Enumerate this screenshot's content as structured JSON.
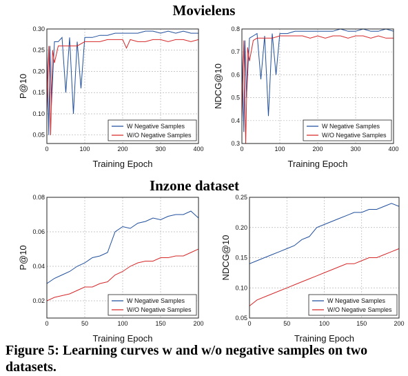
{
  "sections": [
    {
      "title": "Movielens"
    },
    {
      "title": "Inzone dataset"
    }
  ],
  "caption": "Figure 5: Learning curves w and w/o negative samples on two datasets.",
  "colors": {
    "with_neg": "#1f4e9c",
    "without_neg": "#d62728",
    "grid": "#b5b5b5"
  },
  "chart_data": [
    {
      "type": "line",
      "dataset": "Movielens",
      "xlabel": "Training Epoch",
      "ylabel": "P@10",
      "xlim": [
        0,
        400
      ],
      "ylim": [
        0.03,
        0.3
      ],
      "xticks": [
        "0",
        "100",
        "200",
        "300",
        "400"
      ],
      "yticks": [
        "0.05",
        "0.10",
        "0.15",
        "0.20",
        "0.25",
        "0.30"
      ],
      "grid": true,
      "legend_position": "bottom-right",
      "series": [
        {
          "name": "W Negative Samples",
          "x": [
            0,
            5,
            8,
            12,
            20,
            30,
            40,
            50,
            60,
            70,
            80,
            90,
            100,
            120,
            140,
            160,
            180,
            200,
            220,
            240,
            260,
            280,
            300,
            320,
            340,
            360,
            380,
            400
          ],
          "y": [
            0.25,
            0.05,
            0.26,
            0.12,
            0.27,
            0.27,
            0.28,
            0.15,
            0.28,
            0.1,
            0.27,
            0.16,
            0.28,
            0.28,
            0.285,
            0.285,
            0.29,
            0.29,
            0.29,
            0.29,
            0.295,
            0.295,
            0.29,
            0.295,
            0.29,
            0.295,
            0.29,
            0.29
          ]
        },
        {
          "name": "W/O Negative Samples",
          "x": [
            0,
            5,
            10,
            15,
            20,
            30,
            40,
            60,
            80,
            100,
            120,
            140,
            160,
            180,
            200,
            210,
            220,
            240,
            260,
            280,
            300,
            320,
            340,
            360,
            380,
            400
          ],
          "y": [
            0.1,
            0.26,
            0.05,
            0.25,
            0.22,
            0.26,
            0.26,
            0.26,
            0.26,
            0.27,
            0.27,
            0.27,
            0.275,
            0.275,
            0.275,
            0.255,
            0.275,
            0.27,
            0.27,
            0.275,
            0.275,
            0.27,
            0.275,
            0.275,
            0.27,
            0.275
          ]
        }
      ]
    },
    {
      "type": "line",
      "dataset": "Movielens",
      "xlabel": "Training Epoch",
      "ylabel": "NDCG@10",
      "xlim": [
        0,
        400
      ],
      "ylim": [
        0.3,
        0.8
      ],
      "xticks": [
        "0",
        "100",
        "200",
        "300",
        "400"
      ],
      "yticks": [
        "0.3",
        "0.4",
        "0.5",
        "0.6",
        "0.7",
        "0.8"
      ],
      "grid": true,
      "legend_position": "bottom-right",
      "series": [
        {
          "name": "W Negative Samples",
          "x": [
            0,
            5,
            8,
            12,
            20,
            30,
            40,
            50,
            60,
            70,
            80,
            90,
            100,
            120,
            140,
            160,
            180,
            200,
            220,
            240,
            260,
            280,
            300,
            320,
            340,
            360,
            380,
            400
          ],
          "y": [
            0.7,
            0.35,
            0.75,
            0.5,
            0.76,
            0.77,
            0.78,
            0.58,
            0.77,
            0.42,
            0.78,
            0.6,
            0.78,
            0.78,
            0.79,
            0.79,
            0.79,
            0.79,
            0.79,
            0.79,
            0.8,
            0.79,
            0.79,
            0.8,
            0.79,
            0.79,
            0.8,
            0.79
          ]
        },
        {
          "name": "W/O Negative Samples",
          "x": [
            0,
            5,
            10,
            15,
            20,
            30,
            40,
            60,
            80,
            100,
            120,
            140,
            160,
            180,
            200,
            220,
            240,
            260,
            280,
            300,
            320,
            340,
            360,
            380,
            400
          ],
          "y": [
            0.4,
            0.75,
            0.3,
            0.72,
            0.66,
            0.75,
            0.76,
            0.76,
            0.76,
            0.77,
            0.77,
            0.77,
            0.77,
            0.76,
            0.77,
            0.76,
            0.77,
            0.77,
            0.76,
            0.77,
            0.77,
            0.76,
            0.77,
            0.76,
            0.76
          ]
        }
      ]
    },
    {
      "type": "line",
      "dataset": "Inzone dataset",
      "xlabel": "Training Epoch",
      "ylabel": "P@10",
      "xlim": [
        0,
        200
      ],
      "ylim": [
        0.01,
        0.08
      ],
      "xticks": [
        "0",
        "50",
        "100",
        "150",
        "200"
      ],
      "yticks": [
        "0.02",
        "0.04",
        "0.06",
        "0.08"
      ],
      "grid": true,
      "legend_position": "bottom-right",
      "series": [
        {
          "name": "W Negative Samples",
          "x": [
            0,
            10,
            20,
            30,
            40,
            50,
            60,
            70,
            80,
            90,
            100,
            110,
            120,
            130,
            140,
            150,
            160,
            170,
            180,
            190,
            200
          ],
          "y": [
            0.03,
            0.033,
            0.035,
            0.037,
            0.04,
            0.042,
            0.045,
            0.046,
            0.048,
            0.06,
            0.063,
            0.062,
            0.065,
            0.066,
            0.068,
            0.067,
            0.069,
            0.07,
            0.07,
            0.072,
            0.068
          ]
        },
        {
          "name": "W/O Negative Samples",
          "x": [
            0,
            10,
            20,
            30,
            40,
            50,
            60,
            70,
            80,
            90,
            100,
            110,
            120,
            130,
            140,
            150,
            160,
            170,
            180,
            190,
            200
          ],
          "y": [
            0.02,
            0.022,
            0.023,
            0.024,
            0.026,
            0.028,
            0.028,
            0.03,
            0.031,
            0.035,
            0.037,
            0.04,
            0.042,
            0.043,
            0.043,
            0.045,
            0.045,
            0.046,
            0.046,
            0.048,
            0.05
          ]
        }
      ]
    },
    {
      "type": "line",
      "dataset": "Inzone dataset",
      "xlabel": "Training Epoch",
      "ylabel": "NDCG@10",
      "xlim": [
        0,
        200
      ],
      "ylim": [
        0.05,
        0.25
      ],
      "xticks": [
        "0",
        "50",
        "100",
        "150",
        "200"
      ],
      "yticks": [
        "0.05",
        "0.10",
        "0.15",
        "0.20",
        "0.25"
      ],
      "grid": true,
      "legend_position": "bottom-right",
      "series": [
        {
          "name": "W Negative Samples",
          "x": [
            0,
            10,
            20,
            30,
            40,
            50,
            60,
            70,
            80,
            90,
            100,
            110,
            120,
            130,
            140,
            150,
            160,
            170,
            180,
            190,
            200
          ],
          "y": [
            0.14,
            0.145,
            0.15,
            0.155,
            0.16,
            0.165,
            0.17,
            0.18,
            0.185,
            0.2,
            0.205,
            0.21,
            0.215,
            0.22,
            0.225,
            0.225,
            0.23,
            0.23,
            0.235,
            0.24,
            0.235
          ]
        },
        {
          "name": "W/O Negative Samples",
          "x": [
            0,
            10,
            20,
            30,
            40,
            50,
            60,
            70,
            80,
            90,
            100,
            110,
            120,
            130,
            140,
            150,
            160,
            170,
            180,
            190,
            200
          ],
          "y": [
            0.07,
            0.08,
            0.085,
            0.09,
            0.095,
            0.1,
            0.105,
            0.11,
            0.115,
            0.12,
            0.125,
            0.13,
            0.135,
            0.14,
            0.14,
            0.145,
            0.15,
            0.15,
            0.155,
            0.16,
            0.165
          ]
        }
      ]
    }
  ]
}
